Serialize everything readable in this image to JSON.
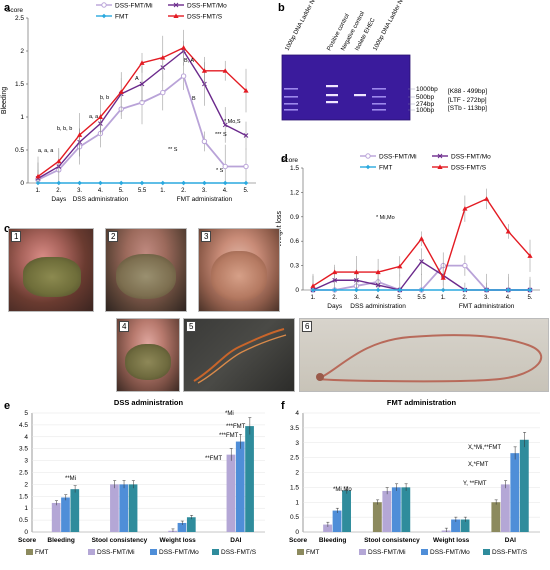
{
  "panels": {
    "a": "a",
    "b": "b",
    "c": "c",
    "d": "d",
    "e": "e",
    "f": "f"
  },
  "colors": {
    "mi": "#b9a3d8",
    "mo": "#6b2a8c",
    "fmt": "#2aa9df",
    "s": "#e31b23",
    "bar_fmt": "#8c8a5e",
    "bar_mi": "#b4a7d6",
    "bar_mo": "#4f8ed8",
    "bar_s": "#2f8c9c"
  },
  "chart_data": [
    {
      "id": "a",
      "type": "line",
      "ylabel_top": "Score",
      "ylabel": "Bleeding",
      "ylim": [
        0,
        2.5
      ],
      "yticks": [
        "0",
        "0.5",
        "1",
        "1.5",
        "2",
        "2.5"
      ],
      "categories": [
        "1.",
        "2.",
        "3.",
        "4.",
        "5.",
        "5.5",
        "1.",
        "2.",
        "3.",
        "4.",
        "5."
      ],
      "xgroup_labels": [
        "Days",
        "DSS administration",
        "FMT administration"
      ],
      "legend": [
        "DSS-FMT/Mi",
        "DSS-FMT/Mo",
        "FMT",
        "DSS-FMT/S"
      ],
      "series": [
        {
          "name": "DSS-FMT/Mi",
          "values": [
            0.05,
            0.2,
            0.55,
            0.75,
            1.12,
            1.22,
            1.37,
            1.62,
            0.63,
            0.25,
            0.25
          ]
        },
        {
          "name": "DSS-FMT/Mo",
          "values": [
            0.07,
            0.25,
            0.62,
            0.9,
            1.35,
            1.5,
            1.75,
            2.0,
            1.5,
            0.88,
            0.72
          ]
        },
        {
          "name": "FMT",
          "values": [
            0,
            0,
            0,
            0,
            0,
            0,
            0,
            0,
            0,
            0,
            0
          ]
        },
        {
          "name": "DSS-FMT/S",
          "values": [
            0.1,
            0.33,
            0.73,
            1.0,
            1.38,
            1.82,
            1.9,
            2.05,
            1.7,
            1.7,
            1.4
          ]
        }
      ],
      "annotations": [
        "a, a, a",
        "b, b, b",
        "a, a",
        "b, b",
        "A",
        "B, A",
        "B",
        "* Mo,S",
        "** S",
        "*** S",
        "* S"
      ]
    },
    {
      "id": "b",
      "type": "gel",
      "lanes": [
        "100bp DNA Ladder NEB",
        "Positive control",
        "Negative control",
        "Isolate EHEC",
        "100bp DNA Ladder NEB"
      ],
      "bands": [
        "1000bp",
        "500bp",
        "274bp",
        "100bp"
      ],
      "targets": [
        "[K88 - 499bp]",
        "[LTF - 272bp]",
        "[STb - 113bp]"
      ]
    },
    {
      "id": "c",
      "type": "photos",
      "labels": [
        "1",
        "2",
        "3",
        "4",
        "5",
        "6"
      ]
    },
    {
      "id": "d",
      "type": "line",
      "ylabel_top": "Score",
      "ylabel": "Weight loss",
      "ylim": [
        0,
        1.5
      ],
      "yticks": [
        "0",
        "0.3",
        "0.6",
        "0.9",
        "1.2",
        "1.5"
      ],
      "categories": [
        "1.",
        "2.",
        "3.",
        "4.",
        "5.",
        "5.5",
        "1.",
        "2.",
        "3.",
        "4.",
        "5."
      ],
      "xgroup_labels": [
        "Days",
        "DSS administration",
        "FMT administration"
      ],
      "legend": [
        "DSS-FMT/Mi",
        "DSS-FMT/Mo",
        "FMT",
        "DSS-FMT/S"
      ],
      "series": [
        {
          "name": "DSS-FMT/Mi",
          "values": [
            0,
            0,
            0.05,
            0.1,
            0,
            0,
            0.3,
            0.3,
            0,
            0,
            0
          ]
        },
        {
          "name": "DSS-FMT/Mo",
          "values": [
            0,
            0.12,
            0.12,
            0.06,
            0,
            0.35,
            0.18,
            0,
            0,
            0,
            0
          ]
        },
        {
          "name": "FMT",
          "values": [
            0,
            0,
            0,
            0,
            0,
            0,
            0,
            0,
            0,
            0,
            0
          ]
        },
        {
          "name": "DSS-FMT/S",
          "values": [
            0.05,
            0.22,
            0.22,
            0.22,
            0.29,
            0.63,
            0.15,
            1.0,
            1.12,
            0.72,
            0.42
          ]
        }
      ],
      "annotations": [
        "* Mi,Mo"
      ]
    },
    {
      "id": "e",
      "type": "bar",
      "title": "DSS administration",
      "ylabel_top": "Score",
      "ylim": [
        0,
        5
      ],
      "yticks": [
        "0",
        "0.5",
        "1",
        "1.5",
        "2",
        "2.5",
        "3",
        "3.5",
        "4",
        "4.5",
        "5"
      ],
      "categories": [
        "Bleeding",
        "Stool consistency",
        "Weight loss",
        "DAI"
      ],
      "series": [
        {
          "name": "FMT",
          "values": [
            0,
            0,
            0,
            0
          ]
        },
        {
          "name": "DSS-FMT/Mi",
          "values": [
            1.22,
            2.0,
            0.05,
            3.25
          ]
        },
        {
          "name": "DSS-FMT/Mo",
          "values": [
            1.45,
            2.0,
            0.38,
            3.8
          ]
        },
        {
          "name": "DSS-FMT/S",
          "values": [
            1.8,
            2.0,
            0.62,
            4.45
          ]
        }
      ],
      "annotations": [
        "**Mi",
        "**FMT",
        "***FMT",
        "*Mi",
        "***FMT"
      ]
    },
    {
      "id": "f",
      "type": "bar",
      "title": "FMT administration",
      "ylabel_top": "Score",
      "ylim": [
        0,
        4
      ],
      "yticks": [
        "0",
        "0.5",
        "1",
        "1.5",
        "2",
        "2.5",
        "3",
        "3.5",
        "4"
      ],
      "categories": [
        "Bleeding",
        "Stool consistency",
        "Weight loss",
        "DAI"
      ],
      "series": [
        {
          "name": "FMT",
          "values": [
            0,
            1.0,
            0,
            1.0
          ]
        },
        {
          "name": "DSS-FMT/Mi",
          "values": [
            0.25,
            1.38,
            0.05,
            1.6
          ]
        },
        {
          "name": "DSS-FMT/Mo",
          "values": [
            0.72,
            1.5,
            0.42,
            2.65
          ]
        },
        {
          "name": "DSS-FMT/S",
          "values": [
            1.4,
            1.5,
            0.42,
            3.1
          ]
        }
      ],
      "annotations": [
        "*Mi,Mo",
        "Y, **FMT",
        "X,*FMT",
        "X,*Mi,**FMT"
      ]
    }
  ]
}
